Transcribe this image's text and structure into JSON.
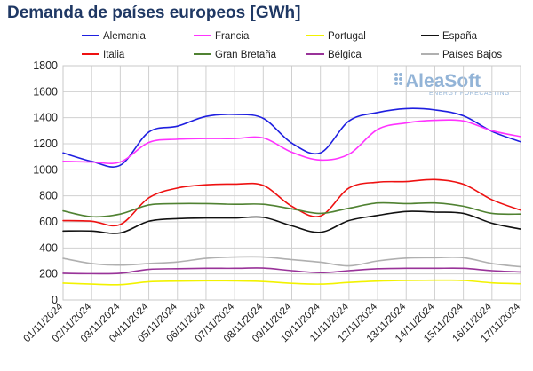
{
  "chart_data": {
    "type": "line",
    "title": "Demanda de países europeos [GWh]",
    "xlabel": "",
    "ylabel": "",
    "ylim": [
      0,
      1800
    ],
    "yticks": [
      0,
      200,
      400,
      600,
      800,
      1000,
      1200,
      1400,
      1600,
      1800
    ],
    "grid": true,
    "legend_position": "top",
    "categories": [
      "01/11/2024",
      "02/11/2024",
      "03/11/2024",
      "04/11/2024",
      "05/11/2024",
      "06/11/2024",
      "07/11/2024",
      "08/11/2024",
      "09/11/2024",
      "10/11/2024",
      "11/11/2024",
      "12/11/2024",
      "13/11/2024",
      "14/11/2024",
      "15/11/2024",
      "16/11/2024",
      "17/11/2024"
    ],
    "series": [
      {
        "name": "Alemania",
        "color": "#1f1fe0",
        "values": [
          1130,
          1065,
          1035,
          1290,
          1335,
          1410,
          1425,
          1395,
          1205,
          1130,
          1375,
          1440,
          1470,
          1460,
          1415,
          1295,
          1215
        ]
      },
      {
        "name": "Francia",
        "color": "#ff33ff",
        "values": [
          1065,
          1060,
          1060,
          1210,
          1235,
          1240,
          1240,
          1245,
          1135,
          1075,
          1120,
          1310,
          1360,
          1380,
          1375,
          1300,
          1255
        ]
      },
      {
        "name": "Portugal",
        "color": "#f2f200",
        "values": [
          130,
          122,
          118,
          140,
          145,
          148,
          147,
          142,
          128,
          122,
          135,
          145,
          150,
          152,
          150,
          132,
          125
        ]
      },
      {
        "name": "España",
        "color": "#111111",
        "values": [
          530,
          530,
          515,
          605,
          625,
          630,
          630,
          635,
          570,
          520,
          610,
          650,
          680,
          675,
          665,
          590,
          545
        ]
      },
      {
        "name": "Italia",
        "color": "#ee1111",
        "values": [
          610,
          605,
          580,
          785,
          860,
          885,
          890,
          880,
          720,
          645,
          860,
          905,
          910,
          925,
          890,
          770,
          690
        ]
      },
      {
        "name": "Gran Bretaña",
        "color": "#508232",
        "values": [
          685,
          640,
          660,
          730,
          740,
          740,
          735,
          735,
          700,
          665,
          705,
          745,
          740,
          745,
          720,
          665,
          660
        ]
      },
      {
        "name": "Bélgica",
        "color": "#993399",
        "values": [
          205,
          202,
          205,
          235,
          240,
          243,
          243,
          245,
          225,
          210,
          225,
          240,
          243,
          243,
          243,
          225,
          215
        ]
      },
      {
        "name": "Países Bajos",
        "color": "#b0b0b0",
        "values": [
          320,
          280,
          268,
          280,
          292,
          320,
          330,
          330,
          310,
          290,
          262,
          300,
          322,
          325,
          325,
          280,
          255
        ]
      }
    ]
  },
  "watermark": {
    "brand": "AleaSoft",
    "tagline": "ENERGY FORECASTING"
  }
}
